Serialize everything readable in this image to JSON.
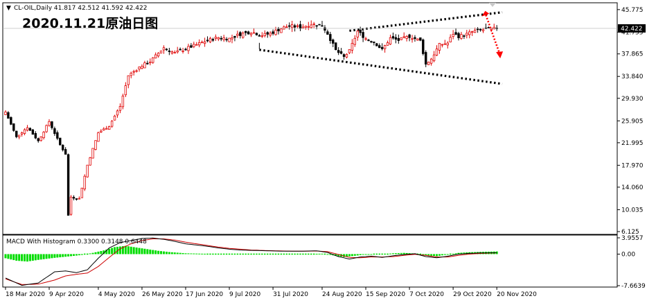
{
  "header": {
    "symbol_line": "CL-OIL,Daily  41.817 42.512 41.592 42.422",
    "annotation_title": "2020.11.21原油日图"
  },
  "colors": {
    "up_candle": "#ffffff",
    "down_candle": "#000000",
    "candle_wick": "#000000",
    "bull_highlight": "#e00000",
    "macd_hist": "#00dd00",
    "macd_main": "#000000",
    "macd_signal": "#cc0000",
    "trend_line": "#000000",
    "arrow": "#ff0000",
    "current_price_bg": "#000000"
  },
  "chart_data": [
    {
      "type": "candlestick",
      "title": "",
      "symbol": "CL-OIL",
      "timeframe": "Daily",
      "ohlc_last": {
        "open": 41.817,
        "high": 42.512,
        "low": 41.592,
        "close": 42.422
      },
      "current_price_label": "42.422",
      "y_ticks": [
        "45.775",
        "41.755",
        "37.865",
        "33.840",
        "29.930",
        "25.905",
        "21.995",
        "17.970",
        "14.060",
        "10.035",
        "6.125"
      ],
      "y_tick_values": [
        45.775,
        41.755,
        37.865,
        33.84,
        29.93,
        25.905,
        21.995,
        17.97,
        14.06,
        10.035,
        6.125
      ],
      "ylim": [
        6.125,
        46.5
      ],
      "x_labels": [
        "18 Mar 2020",
        "9 Apr 2020",
        "4 May 2020",
        "26 May 2020",
        "17 Jun 2020",
        "9 Jul 2020",
        "31 Jul 2020",
        "24 Aug 2020",
        "15 Sep 2020",
        "7 Oct 2020",
        "29 Oct 2020",
        "20 Nov 2020"
      ],
      "x_label_index": [
        0,
        16,
        34,
        50,
        66,
        82,
        98,
        116,
        132,
        148,
        164,
        180
      ],
      "n_bars": 181,
      "anchors_close": [
        [
          0,
          27.5
        ],
        [
          4,
          23.0
        ],
        [
          8,
          24.8
        ],
        [
          12,
          22.3
        ],
        [
          16,
          25.8
        ],
        [
          20,
          21.6
        ],
        [
          22,
          20.0
        ],
        [
          23,
          9.0
        ],
        [
          24,
          12.3
        ],
        [
          27,
          12.0
        ],
        [
          30,
          18.0
        ],
        [
          34,
          23.8
        ],
        [
          38,
          25.0
        ],
        [
          42,
          28.5
        ],
        [
          45,
          34.0
        ],
        [
          50,
          35.8
        ],
        [
          53,
          36.5
        ],
        [
          58,
          39.0
        ],
        [
          62,
          38.0
        ],
        [
          66,
          38.8
        ],
        [
          70,
          39.5
        ],
        [
          74,
          40.3
        ],
        [
          78,
          40.8
        ],
        [
          82,
          40.6
        ],
        [
          86,
          41.4
        ],
        [
          90,
          41.8
        ],
        [
          94,
          41.2
        ],
        [
          97,
          41.5
        ],
        [
          100,
          42.2
        ],
        [
          104,
          42.9
        ],
        [
          108,
          42.6
        ],
        [
          112,
          43.2
        ],
        [
          116,
          43.0
        ],
        [
          118,
          41.5
        ],
        [
          121,
          38.5
        ],
        [
          124,
          37.3
        ],
        [
          126,
          38.4
        ],
        [
          129,
          41.9
        ],
        [
          132,
          40.6
        ],
        [
          135,
          40.0
        ],
        [
          138,
          38.6
        ],
        [
          141,
          40.7
        ],
        [
          144,
          40.3
        ],
        [
          148,
          41.0
        ],
        [
          152,
          40.2
        ],
        [
          154,
          36.0
        ],
        [
          156,
          37.0
        ],
        [
          159,
          39.5
        ],
        [
          162,
          39.8
        ],
        [
          164,
          41.5
        ],
        [
          166,
          41.0
        ],
        [
          169,
          41.4
        ],
        [
          172,
          42.0
        ],
        [
          175,
          42.2
        ],
        [
          178,
          42.3
        ],
        [
          180,
          42.42
        ]
      ],
      "trend_lines": [
        {
          "name": "upper-resistance",
          "from": {
            "bar": 126,
            "price": 42.0
          },
          "to": {
            "bar": 182,
            "price": 45.3
          },
          "style": "dotted"
        },
        {
          "name": "lower-support",
          "from": {
            "bar": 93,
            "price": 38.6
          },
          "to": {
            "bar": 182,
            "price": 32.5
          },
          "style": "dotted"
        }
      ],
      "arrow": {
        "from": {
          "bar": 176,
          "price": 44.8
        },
        "to": {
          "bar": 181,
          "price": 37.2
        },
        "style": "dotted"
      }
    },
    {
      "type": "macd",
      "title": "",
      "label_line": "MACD With Histogram 0.3300 0.3148 0.6448",
      "params": {
        "main": 0.33,
        "signal": 0.3148,
        "histogram": 0.6448
      },
      "y_ticks": [
        "3.9557",
        "0.00",
        "-7.6639"
      ],
      "y_tick_values": [
        3.9557,
        0.0,
        -7.6639
      ],
      "ylim": [
        -7.6639,
        3.9557
      ],
      "main_anchors": [
        [
          0,
          -5.8
        ],
        [
          6,
          -7.6
        ],
        [
          12,
          -7.0
        ],
        [
          18,
          -4.3
        ],
        [
          22,
          -4.1
        ],
        [
          26,
          -4.5
        ],
        [
          30,
          -3.8
        ],
        [
          34,
          -1.0
        ],
        [
          38,
          1.5
        ],
        [
          42,
          2.8
        ],
        [
          46,
          3.3
        ],
        [
          50,
          3.8
        ],
        [
          54,
          3.9
        ],
        [
          58,
          3.6
        ],
        [
          62,
          3.1
        ],
        [
          66,
          2.5
        ],
        [
          70,
          2.2
        ],
        [
          74,
          1.9
        ],
        [
          78,
          1.5
        ],
        [
          82,
          1.2
        ],
        [
          86,
          1.0
        ],
        [
          90,
          0.9
        ],
        [
          96,
          0.8
        ],
        [
          102,
          0.7
        ],
        [
          108,
          0.7
        ],
        [
          114,
          0.8
        ],
        [
          118,
          0.4
        ],
        [
          122,
          -0.6
        ],
        [
          126,
          -1.2
        ],
        [
          130,
          -0.7
        ],
        [
          134,
          -0.5
        ],
        [
          138,
          -0.8
        ],
        [
          142,
          -0.4
        ],
        [
          146,
          -0.1
        ],
        [
          150,
          0.1
        ],
        [
          154,
          -0.6
        ],
        [
          158,
          -0.9
        ],
        [
          162,
          -0.5
        ],
        [
          166,
          0.0
        ],
        [
          170,
          0.2
        ],
        [
          175,
          0.3
        ],
        [
          180,
          0.33
        ]
      ],
      "signal_anchors": [
        [
          0,
          -6.0
        ],
        [
          6,
          -7.4
        ],
        [
          12,
          -7.3
        ],
        [
          18,
          -6.3
        ],
        [
          22,
          -5.3
        ],
        [
          26,
          -4.9
        ],
        [
          30,
          -4.6
        ],
        [
          34,
          -3.0
        ],
        [
          38,
          -0.8
        ],
        [
          42,
          1.3
        ],
        [
          46,
          2.5
        ],
        [
          50,
          3.3
        ],
        [
          54,
          3.7
        ],
        [
          58,
          3.7
        ],
        [
          62,
          3.4
        ],
        [
          66,
          2.9
        ],
        [
          70,
          2.5
        ],
        [
          74,
          2.1
        ],
        [
          78,
          1.7
        ],
        [
          82,
          1.4
        ],
        [
          86,
          1.2
        ],
        [
          90,
          1.0
        ],
        [
          96,
          0.85
        ],
        [
          102,
          0.75
        ],
        [
          108,
          0.7
        ],
        [
          114,
          0.75
        ],
        [
          118,
          0.6
        ],
        [
          122,
          -0.1
        ],
        [
          126,
          -0.8
        ],
        [
          130,
          -0.9
        ],
        [
          134,
          -0.7
        ],
        [
          138,
          -0.7
        ],
        [
          142,
          -0.6
        ],
        [
          146,
          -0.3
        ],
        [
          150,
          -0.05
        ],
        [
          154,
          -0.3
        ],
        [
          158,
          -0.7
        ],
        [
          162,
          -0.7
        ],
        [
          166,
          -0.3
        ],
        [
          170,
          0.0
        ],
        [
          175,
          0.2
        ],
        [
          180,
          0.3148
        ]
      ],
      "hist_anchors": [
        [
          0,
          -1.0
        ],
        [
          4,
          -1.6
        ],
        [
          8,
          -1.8
        ],
        [
          12,
          -1.4
        ],
        [
          18,
          -0.9
        ],
        [
          24,
          -0.5
        ],
        [
          28,
          -0.2
        ],
        [
          32,
          0.3
        ],
        [
          36,
          0.9
        ],
        [
          40,
          1.7
        ],
        [
          44,
          2.0
        ],
        [
          48,
          1.6
        ],
        [
          52,
          1.2
        ],
        [
          56,
          0.8
        ],
        [
          60,
          0.5
        ],
        [
          66,
          0.2
        ],
        [
          72,
          0.1
        ],
        [
          80,
          0.0
        ],
        [
          90,
          0.0
        ],
        [
          100,
          0.0
        ],
        [
          110,
          0.05
        ],
        [
          116,
          0.1
        ],
        [
          120,
          -0.3
        ],
        [
          124,
          -0.7
        ],
        [
          128,
          -0.4
        ],
        [
          132,
          -0.1
        ],
        [
          138,
          -0.05
        ],
        [
          142,
          0.2
        ],
        [
          146,
          0.3
        ],
        [
          150,
          0.15
        ],
        [
          154,
          -0.3
        ],
        [
          158,
          -0.5
        ],
        [
          162,
          -0.1
        ],
        [
          166,
          0.3
        ],
        [
          170,
          0.45
        ],
        [
          175,
          0.55
        ],
        [
          180,
          0.6448
        ]
      ]
    }
  ]
}
